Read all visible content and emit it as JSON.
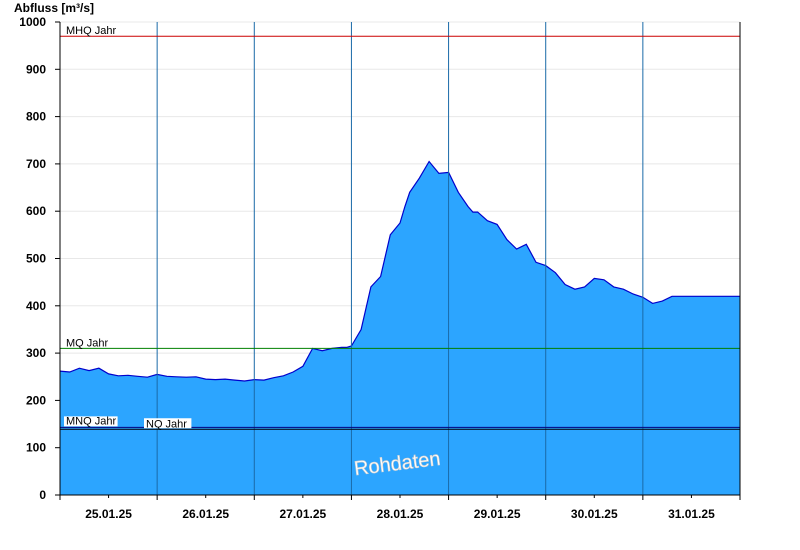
{
  "chart_data": {
    "type": "area",
    "ylabel": "Abfluss [m³/s]",
    "ylim": [
      0,
      1000
    ],
    "yticks": [
      0,
      100,
      200,
      300,
      400,
      500,
      600,
      700,
      800,
      900,
      1000
    ],
    "xlim": [
      0,
      7
    ],
    "date_labels": [
      "25.01.25",
      "26.01.25",
      "27.01.25",
      "28.01.25",
      "29.01.25",
      "30.01.25",
      "31.01.25"
    ],
    "grid": true,
    "fill_color": "#2ca5ff",
    "line_color": "#0000cc",
    "reference_lines": [
      {
        "label": "MHQ Jahr",
        "value": 970,
        "color": "#cc0000"
      },
      {
        "label": "MQ Jahr",
        "value": 310,
        "color": "#008000"
      },
      {
        "label": "MNQ Jahr",
        "value": 143,
        "color": "#000080"
      },
      {
        "label": "NQ Jahr",
        "value": 139,
        "color": "#000000"
      }
    ],
    "watermark": "Rohdaten",
    "series": [
      {
        "x": [
          0,
          0.1,
          0.2,
          0.3,
          0.4,
          0.5,
          0.6,
          0.7,
          0.8,
          0.9,
          1.0,
          1.1,
          1.2,
          1.3,
          1.4,
          1.5,
          1.6,
          1.7,
          1.8,
          1.9,
          2.0,
          2.1,
          2.2,
          2.3,
          2.4,
          2.5,
          2.6,
          2.7,
          2.8,
          2.9,
          2.95,
          3.0,
          3.1,
          3.2,
          3.3,
          3.4,
          3.5,
          3.55,
          3.6,
          3.7,
          3.8,
          3.9,
          4.0,
          4.1,
          4.2,
          4.25,
          4.3,
          4.4,
          4.5,
          4.6,
          4.7,
          4.8,
          4.9,
          5.0,
          5.1,
          5.2,
          5.3,
          5.4,
          5.5,
          5.6,
          5.7,
          5.8,
          5.9,
          6.0,
          6.1,
          6.2,
          6.3,
          6.4,
          6.5,
          6.6,
          6.7,
          6.8,
          6.9,
          7.0
        ],
        "y": [
          262,
          260,
          268,
          263,
          268,
          256,
          252,
          253,
          251,
          249,
          255,
          251,
          250,
          249,
          250,
          245,
          244,
          245,
          243,
          241,
          244,
          243,
          248,
          252,
          260,
          272,
          310,
          305,
          310,
          312,
          312,
          315,
          350,
          440,
          462,
          550,
          575,
          610,
          640,
          670,
          705,
          680,
          682,
          640,
          610,
          598,
          598,
          580,
          572,
          540,
          520,
          530,
          492,
          485,
          470,
          445,
          435,
          440,
          458,
          455,
          440,
          435,
          425,
          418,
          405,
          410,
          420,
          420,
          420,
          420,
          420,
          420,
          420,
          420
        ]
      }
    ]
  }
}
